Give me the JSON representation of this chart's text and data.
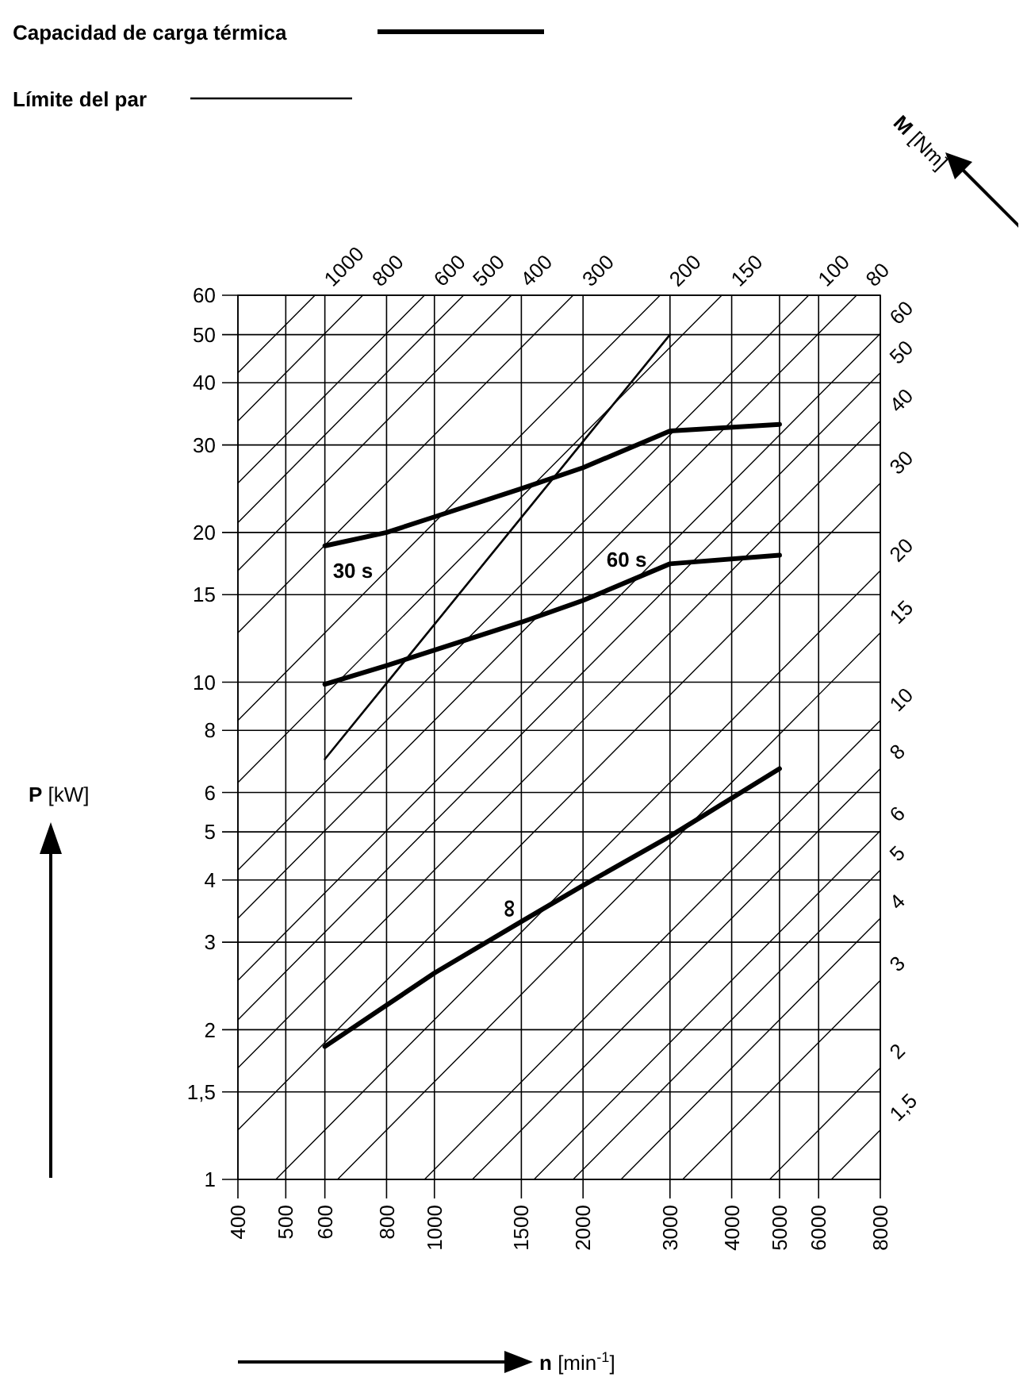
{
  "chart_data": {
    "type": "line",
    "xlabel": "n [min$^{-1}$]",
    "ylabel": "P [kW]",
    "annotations": [
      "Capacidad de carga térmica",
      "Límite del par",
      "M [Nm]"
    ],
    "log": "xy",
    "grid": true,
    "xlim": [
      400,
      8000
    ],
    "xticks": [
      400,
      500,
      600,
      800,
      1000,
      1500,
      2000,
      3000,
      4000,
      5000,
      6000,
      8000
    ],
    "ylim": [
      1,
      60
    ],
    "yticks": [
      1,
      {
        "value": 1.5,
        "label": "1,5"
      },
      2,
      3,
      4,
      5,
      6,
      8,
      10,
      15,
      20,
      30,
      40,
      50,
      60
    ],
    "series": [
      {
        "name": "30 s",
        "color": "#000000",
        "x": [
          600,
          800,
          1000,
          1500,
          2000,
          3000,
          5000
        ],
        "values": [
          18.8,
          20,
          21.5,
          24.5,
          27,
          32,
          33
        ]
      },
      {
        "name": "60 s",
        "color": "#000000",
        "x": [
          600,
          800,
          1000,
          1500,
          2000,
          3000,
          5000
        ],
        "values": [
          9.9,
          10.8,
          11.6,
          13.2,
          14.6,
          17.3,
          18
        ]
      },
      {
        "name": "∞",
        "color": "#000000",
        "x": [
          600,
          1000,
          1500,
          2000,
          3000,
          5000
        ],
        "values": [
          1.85,
          2.6,
          3.3,
          3.9,
          4.9,
          6.7
        ]
      },
      {
        "color": "#000000",
        "x": [
          600,
          3000
        ],
        "values": [
          7,
          50
        ]
      },
      {
        "name": "1000",
        "color": "#000000",
        "x": [
          400,
          573
        ],
        "values": [
          41.89,
          60
        ]
      },
      {
        "name": "800",
        "color": "#000000",
        "x": [
          400,
          716.2
        ],
        "values": [
          33.51,
          60
        ]
      },
      {
        "name": "600",
        "color": "#000000",
        "x": [
          400,
          954.9
        ],
        "values": [
          25.13,
          60
        ]
      },
      {
        "name": "500",
        "color": "#000000",
        "x": [
          400,
          1145.9
        ],
        "values": [
          20.94,
          60
        ]
      },
      {
        "name": "400",
        "color": "#000000",
        "x": [
          400,
          1432.4
        ],
        "values": [
          16.76,
          60
        ]
      },
      {
        "name": "300",
        "color": "#000000",
        "x": [
          400,
          1909.9
        ],
        "values": [
          12.57,
          60
        ]
      },
      {
        "name": "200",
        "color": "#000000",
        "x": [
          400,
          2864.8
        ],
        "values": [
          8.378,
          60
        ]
      },
      {
        "name": "150",
        "color": "#000000",
        "x": [
          400,
          3819.7
        ],
        "values": [
          6.283,
          60
        ]
      },
      {
        "name": "100",
        "color": "#000000",
        "x": [
          400,
          5729.6
        ],
        "values": [
          4.189,
          60
        ]
      },
      {
        "name": "80",
        "color": "#000000",
        "x": [
          400,
          7162
        ],
        "values": [
          3.351,
          60
        ]
      },
      {
        "name": "60",
        "color": "#000000",
        "x": [
          400,
          8000
        ],
        "values": [
          2.513,
          50.27
        ]
      },
      {
        "name": "50",
        "color": "#000000",
        "x": [
          400,
          8000
        ],
        "values": [
          2.094,
          41.89
        ]
      },
      {
        "name": "40",
        "color": "#000000",
        "x": [
          400,
          8000
        ],
        "values": [
          1.676,
          33.51
        ]
      },
      {
        "name": "30",
        "color": "#000000",
        "x": [
          400,
          8000
        ],
        "values": [
          1.257,
          25.13
        ]
      },
      {
        "name": "20",
        "color": "#000000",
        "x": [
          477.5,
          8000
        ],
        "values": [
          1,
          16.76
        ]
      },
      {
        "name": "15",
        "color": "#000000",
        "x": [
          636.6,
          8000
        ],
        "values": [
          1,
          12.57
        ]
      },
      {
        "name": "10",
        "color": "#000000",
        "x": [
          954.9,
          8000
        ],
        "values": [
          1,
          8.378
        ]
      },
      {
        "name": "8",
        "color": "#000000",
        "x": [
          1193.7,
          8000
        ],
        "values": [
          1,
          6.702
        ]
      },
      {
        "name": "6",
        "color": "#000000",
        "x": [
          1591.5,
          8000
        ],
        "values": [
          1,
          5.027
        ]
      },
      {
        "name": "5",
        "color": "#000000",
        "x": [
          1909.9,
          8000
        ],
        "values": [
          1,
          4.189
        ]
      },
      {
        "name": "4",
        "color": "#000000",
        "x": [
          2387.3,
          8000
        ],
        "values": [
          1,
          3.351
        ]
      },
      {
        "name": "3",
        "color": "#000000",
        "x": [
          3183.1,
          8000
        ],
        "values": [
          1,
          2.513
        ]
      },
      {
        "name": "2",
        "color": "#000000",
        "x": [
          4774.6,
          8000
        ],
        "values": [
          1,
          1.676
        ]
      },
      {
        "name": "1,5",
        "color": "#000000",
        "x": [
          6366.2,
          8000
        ],
        "values": [
          1,
          1.257
        ]
      }
    ]
  }
}
